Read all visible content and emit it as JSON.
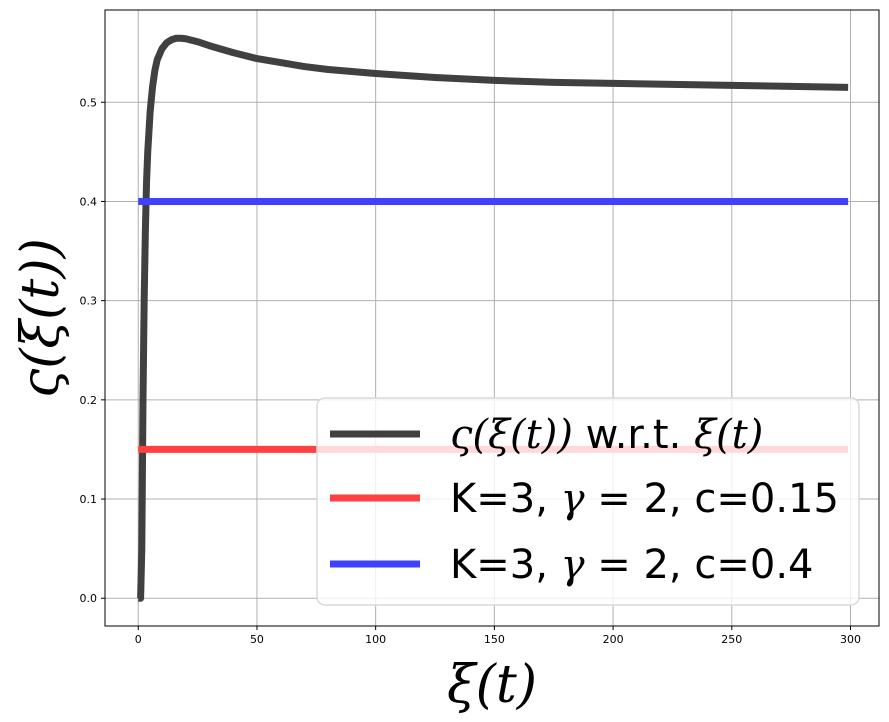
{
  "chart_data": {
    "type": "line",
    "xlabel": "ξ(t)",
    "ylabel": "ς(ξ(t))",
    "xlim": [
      -14,
      312
    ],
    "ylim": [
      -0.028,
      0.593
    ],
    "xticks": [
      0,
      50,
      100,
      150,
      200,
      250,
      300
    ],
    "yticks": [
      0.0,
      0.1,
      0.2,
      0.3,
      0.4,
      0.5
    ],
    "ytick_labels": [
      "0.0",
      "0.1",
      "0.2",
      "0.3",
      "0.4",
      "0.5"
    ],
    "grid": true,
    "legend_position": "lower-right",
    "series": [
      {
        "name": "ς(ξ(t)) w.r.t. ξ(t)",
        "legend_parts": [
          {
            "text": "ς(ξ(t))",
            "italic": true
          },
          {
            "text": " w.r.t. ",
            "italic": false
          },
          {
            "text": "ξ(t)",
            "italic": true
          }
        ],
        "color": "#404040",
        "x": [
          0,
          0.5,
          1,
          1.5,
          2,
          2.5,
          3,
          3.5,
          4,
          5,
          6,
          7,
          8,
          10,
          12,
          14,
          16,
          18,
          20,
          25,
          30,
          40,
          50,
          60,
          70,
          80,
          90,
          100,
          125,
          150,
          175,
          200,
          225,
          250,
          275,
          299
        ],
        "y": [
          0.0,
          0.0,
          0.0,
          0.05,
          0.2,
          0.3,
          0.37,
          0.42,
          0.45,
          0.49,
          0.515,
          0.532,
          0.543,
          0.554,
          0.56,
          0.563,
          0.5645,
          0.5645,
          0.564,
          0.561,
          0.557,
          0.55,
          0.544,
          0.54,
          0.536,
          0.533,
          0.531,
          0.529,
          0.525,
          0.522,
          0.52,
          0.519,
          0.518,
          0.517,
          0.516,
          0.515
        ]
      },
      {
        "name": "K=3, γ = 2, c=0.15",
        "legend_parts": [
          {
            "text": "K=3, ",
            "italic": false
          },
          {
            "text": "γ",
            "italic": true
          },
          {
            "text": " = 2, c=0.15",
            "italic": false
          }
        ],
        "color": "#ff4040",
        "x": [
          0,
          299
        ],
        "y": [
          0.15,
          0.15
        ]
      },
      {
        "name": "K=3, γ = 2, c=0.4",
        "legend_parts": [
          {
            "text": "K=3, ",
            "italic": false
          },
          {
            "text": "γ",
            "italic": true
          },
          {
            "text": " = 2, c=0.4",
            "italic": false
          }
        ],
        "color": "#4040ff",
        "x": [
          0,
          299
        ],
        "y": [
          0.4,
          0.4
        ]
      }
    ]
  }
}
